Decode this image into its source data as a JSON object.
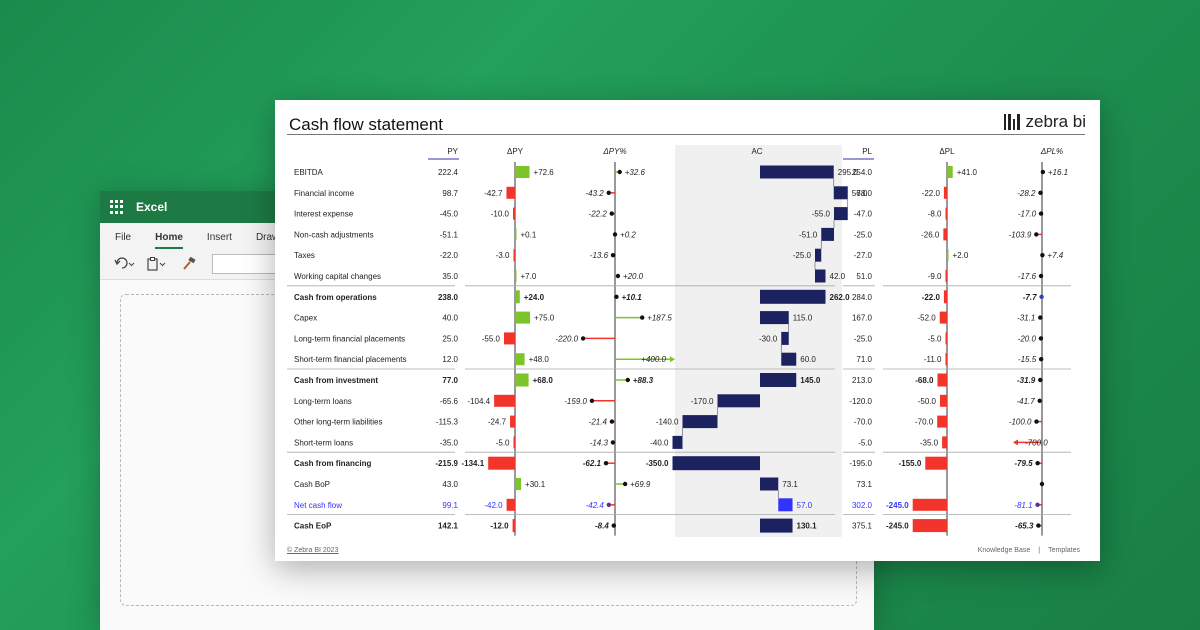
{
  "excel": {
    "app_name": "Excel",
    "tabs": [
      "File",
      "Home",
      "Insert",
      "Draw"
    ],
    "active_tab": "Home",
    "icons": [
      "undo-icon",
      "clipboard-icon",
      "format-painter-icon"
    ]
  },
  "card": {
    "title": "Cash flow statement",
    "brand": "zebra bi",
    "footer_left": "© Zebra BI 2023",
    "footer_right": [
      "Knowledge Base",
      "|",
      "Templates"
    ],
    "colors": {
      "positive": "#7dc42a",
      "negative": "#f2342a",
      "ac_bar": "#1c2260",
      "highlight": "#3333ff",
      "axis": "#999999"
    }
  },
  "chart_data": {
    "type": "table",
    "columns": {
      "py": "PY",
      "dpy": "ΔPY",
      "dpy_pct": "ΔPY%",
      "ac": "AC",
      "pl": "PL",
      "dpl": "ΔPL",
      "dpl_pct": "ΔPL%"
    },
    "rows": [
      {
        "label": "EBITDA",
        "py": "222.4",
        "dpy": "+72.6",
        "dpy_pct": "+32.6",
        "ac": "295.0",
        "pl": "254.0",
        "dpl": "+41.0",
        "dpl_pct": "+16.1",
        "dpy_v": 72.6,
        "dpy_pct_v": 32.6,
        "ac_start": 0,
        "ac_end": 295.0,
        "dpl_v": 41.0,
        "dpl_pct_v": 16.1,
        "type": "normal"
      },
      {
        "label": "Financial income",
        "py": "98.7",
        "dpy": "-42.7",
        "dpy_pct": "-43.2",
        "ac": "56.0",
        "pl": "78.0",
        "dpl": "-22.0",
        "dpl_pct": "-28.2",
        "dpy_v": -42.7,
        "dpy_pct_v": -43.2,
        "ac_start": 295.0,
        "ac_end": 351.0,
        "dpl_v": -22.0,
        "dpl_pct_v": -28.2,
        "type": "normal"
      },
      {
        "label": "Interest expense",
        "py": "-45.0",
        "dpy": "-10.0",
        "dpy_pct": "-22.2",
        "ac": "-55.0",
        "pl": "-47.0",
        "dpl": "-8.0",
        "dpl_pct": "-17.0",
        "dpy_v": -10.0,
        "dpy_pct_v": -22.2,
        "ac_start": 351.0,
        "ac_end": 296.0,
        "dpl_v": -8.0,
        "dpl_pct_v": -17.0,
        "type": "normal"
      },
      {
        "label": "Non-cash adjustments",
        "py": "-51.1",
        "dpy": "+0.1",
        "dpy_pct": "+0.2",
        "ac": "-51.0",
        "pl": "-25.0",
        "dpl": "-26.0",
        "dpl_pct": "-103.9",
        "dpy_v": 0.1,
        "dpy_pct_v": 0.2,
        "ac_start": 296.0,
        "ac_end": 245.0,
        "dpl_v": -26.0,
        "dpl_pct_v": -103.9,
        "type": "normal"
      },
      {
        "label": "Taxes",
        "py": "-22.0",
        "dpy": "-3.0",
        "dpy_pct": "-13.6",
        "ac": "-25.0",
        "pl": "-27.0",
        "dpl": "+2.0",
        "dpl_pct": "+7.4",
        "dpy_v": -3.0,
        "dpy_pct_v": -13.6,
        "ac_start": 245.0,
        "ac_end": 220.0,
        "dpl_v": 2.0,
        "dpl_pct_v": 7.4,
        "type": "normal"
      },
      {
        "label": "Working capital changes",
        "py": "35.0",
        "dpy": "+7.0",
        "dpy_pct": "+20.0",
        "ac": "42.0",
        "pl": "51.0",
        "dpl": "-9.0",
        "dpl_pct": "-17.6",
        "dpy_v": 7.0,
        "dpy_pct_v": 20.0,
        "ac_start": 220.0,
        "ac_end": 262.0,
        "dpl_v": -9.0,
        "dpl_pct_v": -17.6,
        "type": "normal"
      },
      {
        "label": "Cash from operations",
        "py": "238.0",
        "dpy": "+24.0",
        "dpy_pct": "+10.1",
        "ac": "262.0",
        "pl": "284.0",
        "dpl": "-22.0",
        "dpl_pct": "-7.7",
        "dpy_v": 24.0,
        "dpy_pct_v": 10.1,
        "ac_start": 0,
        "ac_end": 262.0,
        "dpl_v": -22.0,
        "dpl_pct_v": -7.7,
        "type": "total"
      },
      {
        "label": "Capex",
        "py": "40.0",
        "dpy": "+75.0",
        "dpy_pct": "+187.5",
        "ac": "115.0",
        "pl": "167.0",
        "dpl": "-52.0",
        "dpl_pct": "-31.1",
        "dpy_v": 75.0,
        "dpy_pct_v": 187.5,
        "ac_start": 0,
        "ac_end": 115.0,
        "dpl_v": -52.0,
        "dpl_pct_v": -31.1,
        "type": "normal"
      },
      {
        "label": "Long-term financial placements",
        "py": "25.0",
        "dpy": "-55.0",
        "dpy_pct": "-220.0",
        "ac": "-30.0",
        "pl": "-25.0",
        "dpl": "-5.0",
        "dpl_pct": "-20.0",
        "dpy_v": -55.0,
        "dpy_pct_v": -220.0,
        "ac_start": 115.0,
        "ac_end": 85.0,
        "dpl_v": -5.0,
        "dpl_pct_v": -20.0,
        "type": "normal"
      },
      {
        "label": "Short-term financial placements",
        "py": "12.0",
        "dpy": "+48.0",
        "dpy_pct": "+400.0",
        "ac": "60.0",
        "pl": "71.0",
        "dpl": "-11.0",
        "dpl_pct": "-15.5",
        "dpy_v": 48.0,
        "dpy_pct_v": 400.0,
        "ac_start": 85.0,
        "ac_end": 145.0,
        "dpl_v": -11.0,
        "dpl_pct_v": -15.5,
        "type": "normal"
      },
      {
        "label": "Cash from investment",
        "py": "77.0",
        "dpy": "+68.0",
        "dpy_pct": "+88.3",
        "ac": "145.0",
        "pl": "213.0",
        "dpl": "-68.0",
        "dpl_pct": "-31.9",
        "dpy_v": 68.0,
        "dpy_pct_v": 88.3,
        "ac_start": 0,
        "ac_end": 145.0,
        "dpl_v": -68.0,
        "dpl_pct_v": -31.9,
        "type": "total"
      },
      {
        "label": "Long-term loans",
        "py": "-65.6",
        "dpy": "-104.4",
        "dpy_pct": "-159.0",
        "ac": "-170.0",
        "pl": "-120.0",
        "dpl": "-50.0",
        "dpl_pct": "-41.7",
        "dpy_v": -104.4,
        "dpy_pct_v": -159.0,
        "ac_start": 0,
        "ac_end": -170.0,
        "dpl_v": -50.0,
        "dpl_pct_v": -41.7,
        "type": "normal"
      },
      {
        "label": "Other long-term liabilities",
        "py": "-115.3",
        "dpy": "-24.7",
        "dpy_pct": "-21.4",
        "ac": "-140.0",
        "pl": "-70.0",
        "dpl": "-70.0",
        "dpl_pct": "-100.0",
        "dpy_v": -24.7,
        "dpy_pct_v": -21.4,
        "ac_start": -170.0,
        "ac_end": -310.0,
        "dpl_v": -70.0,
        "dpl_pct_v": -100.0,
        "type": "normal"
      },
      {
        "label": "Short-term loans",
        "py": "-35.0",
        "dpy": "-5.0",
        "dpy_pct": "-14.3",
        "ac": "-40.0",
        "pl": "-5.0",
        "dpl": "-35.0",
        "dpl_pct": "-700.0",
        "dpy_v": -5.0,
        "dpy_pct_v": -14.3,
        "ac_start": -310.0,
        "ac_end": -350.0,
        "dpl_v": -35.0,
        "dpl_pct_v": -700.0,
        "type": "normal"
      },
      {
        "label": "Cash from financing",
        "py": "-215.9",
        "dpy": "-134.1",
        "dpy_pct": "-62.1",
        "ac": "-350.0",
        "pl": "-195.0",
        "dpl": "-155.0",
        "dpl_pct": "-79.5",
        "dpy_v": -134.1,
        "dpy_pct_v": -62.1,
        "ac_start": 0,
        "ac_end": -350.0,
        "dpl_v": -155.0,
        "dpl_pct_v": -79.5,
        "type": "total"
      },
      {
        "label": "Cash BoP",
        "py": "43.0",
        "dpy": "+30.1",
        "dpy_pct": "+69.9",
        "ac": "73.1",
        "pl": "73.1",
        "dpl": "",
        "dpl_pct": "",
        "dpy_v": 30.1,
        "dpy_pct_v": 69.9,
        "ac_start": 0,
        "ac_end": 73.1,
        "dpl_v": 0,
        "dpl_pct_v": 0,
        "type": "normal"
      },
      {
        "label": "Net cash flow",
        "py": "99.1",
        "dpy": "-42.0",
        "dpy_pct": "-42.4",
        "ac": "57.0",
        "pl": "302.0",
        "dpl": "-245.0",
        "dpl_pct": "-81.1",
        "dpy_v": -42.0,
        "dpy_pct_v": -42.4,
        "ac_start": 73.1,
        "ac_end": 130.1,
        "dpl_v": -245.0,
        "dpl_pct_v": -81.1,
        "type": "highlight"
      },
      {
        "label": "Cash EoP",
        "py": "142.1",
        "dpy": "-12.0",
        "dpy_pct": "-8.4",
        "ac": "130.1",
        "pl": "375.1",
        "dpl": "-245.0",
        "dpl_pct": "-65.3",
        "dpy_v": -12.0,
        "dpy_pct_v": -8.4,
        "ac_start": 0,
        "ac_end": 130.1,
        "dpl_v": -245.0,
        "dpl_pct_v": -65.3,
        "type": "total"
      }
    ]
  }
}
